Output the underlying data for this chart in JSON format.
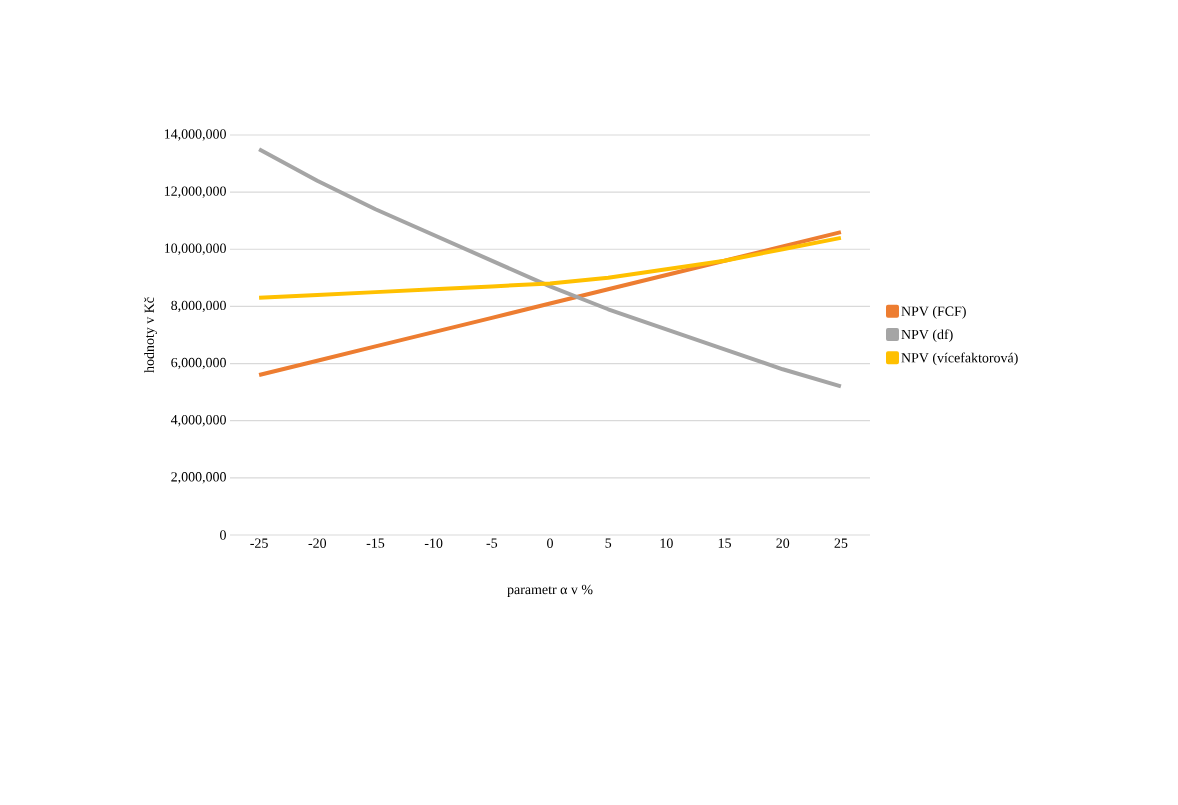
{
  "chart_data": {
    "type": "line",
    "xlabel": "parametr α  v %",
    "ylabel": "hodnoty v Kč",
    "categories": [
      "-25",
      "-20",
      "-15",
      "-10",
      "-5",
      "0",
      "5",
      "10",
      "15",
      "20",
      "25"
    ],
    "series": [
      {
        "name": "NPV (FCF)",
        "color": "#ed7d31",
        "values": [
          5600000,
          6100000,
          6600000,
          7100000,
          7600000,
          8100000,
          8600000,
          9100000,
          9600000,
          10100000,
          10600000
        ]
      },
      {
        "name": "NPV (df)",
        "color": "#a5a5a5",
        "values": [
          13500000,
          12400000,
          11400000,
          10500000,
          9600000,
          8700000,
          7900000,
          7200000,
          6500000,
          5800000,
          5200000
        ]
      },
      {
        "name": "NPV (vícefaktorová)",
        "color": "#ffc000",
        "values": [
          8300000,
          8400000,
          8500000,
          8600000,
          8700000,
          8800000,
          9000000,
          9300000,
          9600000,
          10000000,
          10400000
        ]
      }
    ],
    "ylim": [
      0,
      14000000
    ],
    "yticks": [
      0,
      {
        "value": 2000000,
        "label": "2,000,000"
      },
      {
        "value": 4000000,
        "label": "4,000,000"
      },
      {
        "value": 6000000,
        "label": "6,000,000"
      },
      {
        "value": 8000000,
        "label": "8,000,000"
      },
      {
        "value": 10000000,
        "label": "10,000,000"
      },
      {
        "value": 12000000,
        "label": "12,000,000"
      },
      {
        "value": 14000000,
        "label": "14,000,000"
      }
    ],
    "grid": "y",
    "legend": "right",
    "marker": "none",
    "line_style": "solid"
  }
}
